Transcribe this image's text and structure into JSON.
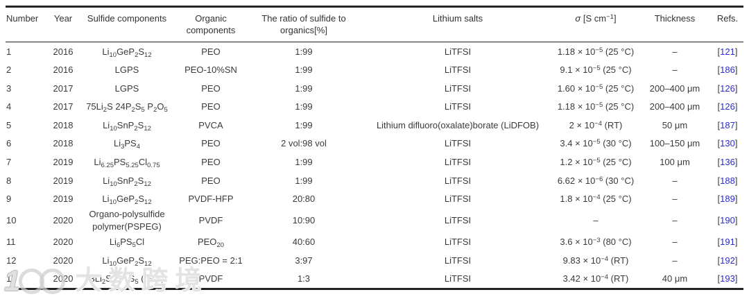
{
  "page": {
    "background": "#ffffff",
    "text_color": "#3a3a3a",
    "rule_color": "#222222",
    "ref_link_color": "#2b2bcd"
  },
  "table": {
    "columns": [
      {
        "key": "number",
        "label": "Number",
        "align": "left"
      },
      {
        "key": "year",
        "label": "Year"
      },
      {
        "key": "sulfide",
        "label": "Sulfide components"
      },
      {
        "key": "organic",
        "label": "Organic components"
      },
      {
        "key": "ratio",
        "label": "The ratio of sulfide to organics[%]"
      },
      {
        "key": "salt",
        "label": "Lithium salts"
      },
      {
        "key": "sigma",
        "label": "*σ* [S cm^−1^]"
      },
      {
        "key": "thickness",
        "label": "Thickness"
      },
      {
        "key": "ref",
        "label": "Refs."
      }
    ],
    "rows": [
      {
        "number": "1",
        "year": "2016",
        "sulfide": "Li~10~GeP~2~S~12~",
        "organic": "PEO",
        "ratio": "1:99",
        "salt": "LiTFSI",
        "sigma": "1.18 × 10^−5^ (25 °C)",
        "thickness": "–",
        "ref": "[121]"
      },
      {
        "number": "2",
        "year": "2016",
        "sulfide": "LGPS",
        "organic": "PEO-10%SN",
        "ratio": "1:99",
        "salt": "LiTFSI",
        "sigma": "9.1 × 10^−5^ (25 °C)",
        "thickness": "–",
        "ref": "[186]"
      },
      {
        "number": "3",
        "year": "2017",
        "sulfide": "LGPS",
        "organic": "PEO",
        "ratio": "1:99",
        "salt": "LiTFSI",
        "sigma": "1.60 × 10^−5^ (25 °C)",
        "thickness": "200–400 μm",
        "ref": "[126]"
      },
      {
        "number": "4",
        "year": "2017",
        "sulfide": "75Li~2~S 24P~2~S~5~ P~2~O~5~",
        "organic": "PEO",
        "ratio": "1:99",
        "salt": "LiTFSI",
        "sigma": "1.18 × 10^−5^ (25 °C)",
        "thickness": "200–400 μm",
        "ref": "[126]"
      },
      {
        "number": "5",
        "year": "2018",
        "sulfide": "Li~10~SnP~2~S~12~",
        "organic": "PVCA",
        "ratio": "1:99",
        "salt": "Lithium difluoro(oxalate)borate (LiDFOB)",
        "sigma": "2 × 10^−4^ (RT)",
        "thickness": "50 μm",
        "ref": "[187]"
      },
      {
        "number": "6",
        "year": "2018",
        "sulfide": "Li~3~PS~4~",
        "organic": "PEO",
        "ratio": "2 vol:98 vol",
        "salt": "LiTFSI",
        "sigma": "3.4 × 10^−5^ (30 °C)",
        "thickness": "100–150 μm",
        "ref": "[130]"
      },
      {
        "number": "7",
        "year": "2019",
        "sulfide": "Li~6.25~PS~5.25~Cl~0.75~",
        "organic": "PEO",
        "ratio": "1:99",
        "salt": "LiTFSI",
        "sigma": "1.2 × 10^−5^ (25 °C)",
        "thickness": "100 μm",
        "ref": "[136]"
      },
      {
        "number": "8",
        "year": "2019",
        "sulfide": "Li~10~SnP~2~S~12~",
        "organic": "PEO",
        "ratio": "1:99",
        "salt": "LiTFSI",
        "sigma": "6.62 × 10^−6^ (30 °C)",
        "thickness": "–",
        "ref": "[188]"
      },
      {
        "number": "9",
        "year": "2019",
        "sulfide": "Li~10~GeP~2~S~12~",
        "organic": "PVDF-HFP",
        "ratio": "20:80",
        "salt": "LiTFSI",
        "sigma": "1.8 × 10^−4^ (25 °C)",
        "thickness": "–",
        "ref": "[189]"
      },
      {
        "number": "10",
        "year": "2020",
        "sulfide": "Organo-polysulfide polymer(PSPEG)",
        "organic": "PVDF",
        "ratio": "10:90",
        "salt": "LiTFSI",
        "sigma": "–",
        "thickness": "–",
        "ref": "[190]"
      },
      {
        "number": "11",
        "year": "2020",
        "sulfide": "Li~6~PS~5~Cl",
        "organic": "PEO~20~",
        "ratio": "40:60",
        "salt": "LiTFSI",
        "sigma": "3.6 × 10^−3^ (80 °C)",
        "thickness": "–",
        "ref": "[191]"
      },
      {
        "number": "12",
        "year": "2020",
        "sulfide": "Li~10~GeP~2~S~12~",
        "organic": "PEG:PEO = 2:1",
        "ratio": "3:97",
        "salt": "LiTFSI",
        "sigma": "9.83 × 10^−4^ (RT)",
        "thickness": "–",
        "ref": "[192]"
      },
      {
        "number": "13",
        "year": "2020",
        "sulfide": "3Li~2~S 2P~2~S~5~ (LPS)",
        "organic": "PVDF",
        "ratio": "1:3",
        "salt": "LiTFSI",
        "sigma": "3.42 × 10^−4^ (RT)",
        "thickness": "40 μm",
        "ref": "[193]"
      }
    ]
  },
  "watermark": {
    "logo_text": "1",
    "text": "大数跨境"
  }
}
